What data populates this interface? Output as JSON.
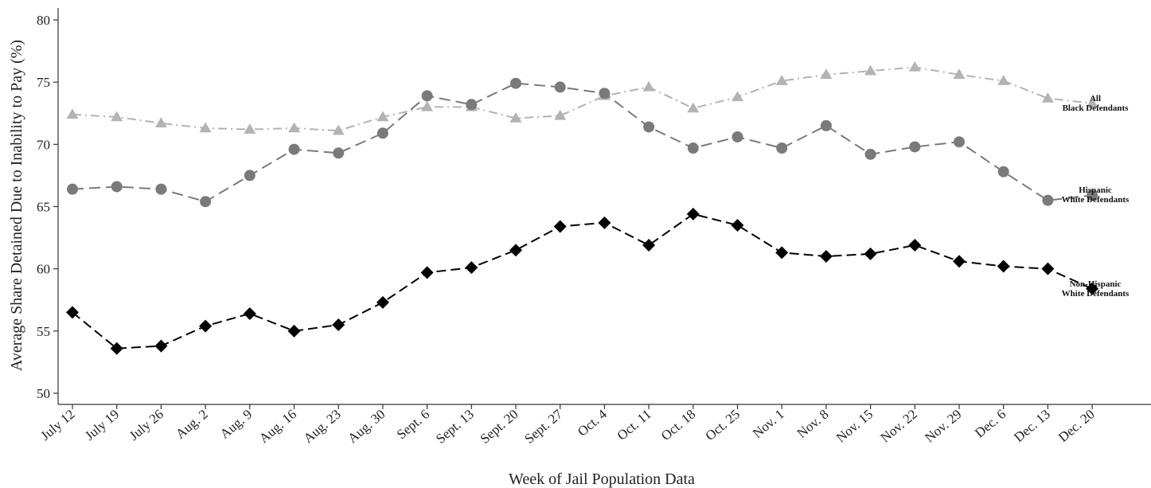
{
  "chart_data": {
    "type": "line",
    "title": "",
    "xlabel": "Week of Jail Population Data",
    "ylabel": "Average Share Detained Due to Inability to Pay (%)",
    "ylim": [
      50,
      80
    ],
    "yticks": [
      50,
      55,
      60,
      65,
      70,
      75,
      80
    ],
    "grid": false,
    "categories": [
      "July 12",
      "July 19",
      "July 26",
      "Aug. 2",
      "Aug. 9",
      "Aug. 16",
      "Aug. 23",
      "Aug. 30",
      "Sept. 6",
      "Sept. 13",
      "Sept. 20",
      "Sept. 27",
      "Oct. 4",
      "Oct. 11",
      "Oct. 18",
      "Oct. 25",
      "Nov. 1",
      "Nov. 8",
      "Nov. 15",
      "Nov. 22",
      "Nov. 29",
      "Dec. 6",
      "Dec. 13",
      "Dec. 20"
    ],
    "series": [
      {
        "name": "All Black Defendants",
        "label_lines": [
          "All",
          "Black Defendants"
        ],
        "marker": "triangle",
        "color": "#b3b3b3",
        "dash": "dashdot",
        "values": [
          72.4,
          72.2,
          71.7,
          71.3,
          71.2,
          71.3,
          71.1,
          72.2,
          73.0,
          73.0,
          72.1,
          72.3,
          73.9,
          74.6,
          72.9,
          73.8,
          75.1,
          75.6,
          75.9,
          76.2,
          75.6,
          75.1,
          73.7,
          73.3
        ]
      },
      {
        "name": "Hispanic White Defendants",
        "label_lines": [
          "Hispanic",
          "White Defendants"
        ],
        "marker": "circle",
        "color": "#7a7a7a",
        "dash": "longdash",
        "values": [
          66.4,
          66.6,
          66.4,
          65.4,
          67.5,
          69.6,
          69.3,
          70.9,
          73.9,
          73.2,
          74.9,
          74.6,
          74.1,
          71.4,
          69.7,
          70.6,
          69.7,
          71.5,
          69.2,
          69.8,
          70.2,
          67.8,
          65.5,
          65.9
        ]
      },
      {
        "name": "Non-Hispanic White Defendants",
        "label_lines": [
          "Non-Hispanic",
          "White Defendants"
        ],
        "marker": "diamond",
        "color": "#000000",
        "dash": "dash",
        "values": [
          56.5,
          53.6,
          53.8,
          55.4,
          56.4,
          55.0,
          55.5,
          57.3,
          59.7,
          60.1,
          61.5,
          63.4,
          63.7,
          61.9,
          64.4,
          63.5,
          61.3,
          61.0,
          61.2,
          61.9,
          60.6,
          60.2,
          60.0,
          58.4
        ]
      }
    ]
  }
}
